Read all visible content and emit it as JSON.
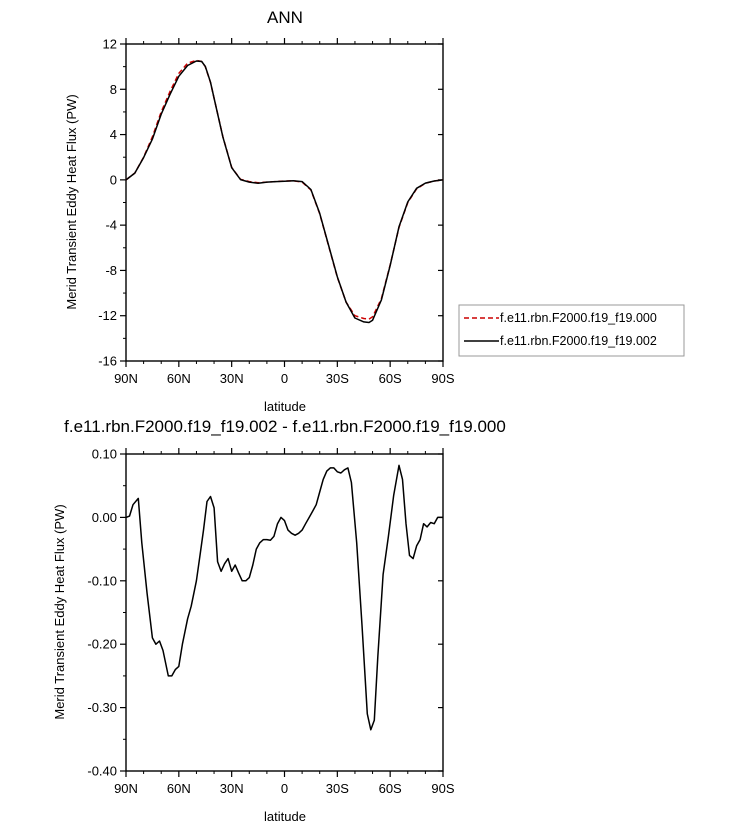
{
  "chart_data": [
    {
      "type": "line",
      "title": "ANN",
      "xlabel": "latitude",
      "ylabel": "Merid Transient Eddy Heat Flux (PW)",
      "xlim": [
        90,
        -90
      ],
      "ylim": [
        -16,
        12
      ],
      "x_ticks": [
        90,
        60,
        30,
        0,
        -30,
        -60,
        -90
      ],
      "x_tick_labels": [
        "90N",
        "60N",
        "30N",
        "0",
        "30S",
        "60S",
        "90S"
      ],
      "y_ticks": [
        12,
        8,
        4,
        0,
        -4,
        -8,
        -12,
        -16
      ],
      "y_tick_labels": [
        "12",
        "8",
        "4",
        "0",
        "-4",
        "-8",
        "-12",
        "-16"
      ],
      "legend_position": "right",
      "series": [
        {
          "name": "f.e11.rbn.F2000.f19_f19.000",
          "color": "#cc0000",
          "dash": "dashed",
          "x": [
            90,
            85,
            80,
            75,
            70,
            65,
            60,
            55,
            50,
            47,
            45,
            42,
            40,
            35,
            30,
            25,
            20,
            15,
            10,
            5,
            0,
            -5,
            -10,
            -15,
            -20,
            -25,
            -30,
            -35,
            -40,
            -45,
            -48,
            -50,
            -55,
            -60,
            -65,
            -70,
            -75,
            -80,
            -85,
            -90
          ],
          "y": [
            0,
            0.6,
            2.0,
            3.8,
            6.0,
            7.8,
            9.4,
            10.3,
            10.55,
            10.45,
            10.0,
            8.6,
            7.2,
            3.8,
            1.1,
            0.05,
            -0.15,
            -0.25,
            -0.2,
            -0.15,
            -0.1,
            -0.08,
            -0.2,
            -0.9,
            -3.0,
            -5.8,
            -8.6,
            -10.8,
            -12.0,
            -12.25,
            -12.3,
            -12.1,
            -10.5,
            -7.5,
            -4.2,
            -2.0,
            -0.8,
            -0.3,
            -0.1,
            0
          ]
        },
        {
          "name": "f.e11.rbn.F2000.f19_f19.002",
          "color": "#000000",
          "dash": "solid",
          "x": [
            90,
            85,
            80,
            75,
            70,
            65,
            60,
            55,
            50,
            47,
            45,
            42,
            40,
            35,
            30,
            25,
            20,
            15,
            10,
            5,
            0,
            -5,
            -10,
            -15,
            -20,
            -25,
            -30,
            -35,
            -40,
            -45,
            -48,
            -50,
            -55,
            -60,
            -65,
            -70,
            -75,
            -80,
            -85,
            -90
          ],
          "y": [
            0,
            0.6,
            1.97,
            3.6,
            5.8,
            7.55,
            9.15,
            10.1,
            10.5,
            10.45,
            10.02,
            8.63,
            7.2,
            3.78,
            1.07,
            0.02,
            -0.2,
            -0.3,
            -0.2,
            -0.15,
            -0.12,
            -0.08,
            -0.15,
            -0.85,
            -2.95,
            -5.75,
            -8.55,
            -10.8,
            -12.2,
            -12.55,
            -12.6,
            -12.4,
            -10.6,
            -7.55,
            -4.15,
            -1.95,
            -0.75,
            -0.29,
            -0.1,
            0
          ]
        }
      ]
    },
    {
      "type": "line",
      "title": "f.e11.rbn.F2000.f19_f19.002 - f.e11.rbn.F2000.f19_f19.000",
      "xlabel": "latitude",
      "ylabel": "Merid Transient Eddy Heat Flux (PW)",
      "xlim": [
        90,
        -90
      ],
      "ylim": [
        -0.4,
        0.1
      ],
      "x_ticks": [
        90,
        60,
        30,
        0,
        -30,
        -60,
        -90
      ],
      "x_tick_labels": [
        "90N",
        "60N",
        "30N",
        "0",
        "30S",
        "60S",
        "90S"
      ],
      "y_ticks": [
        0.1,
        0,
        -0.1,
        -0.2,
        -0.3,
        -0.4
      ],
      "y_tick_labels": [
        "0.10",
        "0.00",
        "-0.10",
        "-0.20",
        "-0.30",
        "-0.40"
      ],
      "series": [
        {
          "name": "",
          "color": "#000000",
          "x": [
            90,
            88,
            86,
            83,
            81,
            78,
            75,
            73,
            71,
            69,
            66,
            64,
            62,
            60,
            58,
            55,
            53,
            50,
            48,
            46,
            44,
            42,
            40,
            38,
            36,
            34,
            32,
            30,
            28,
            26,
            24,
            22,
            20,
            18,
            16,
            14,
            12,
            10,
            8,
            6,
            4,
            2,
            0,
            -2,
            -4,
            -6,
            -8,
            -10,
            -12,
            -14,
            -16,
            -18,
            -20,
            -22,
            -24,
            -26,
            -28,
            -30,
            -32,
            -34,
            -36,
            -38,
            -41,
            -44,
            -47,
            -49,
            -51,
            -53,
            -56,
            -59,
            -62,
            -65,
            -67,
            -69,
            -71,
            -73,
            -75,
            -77,
            -79,
            -81,
            -83,
            -85,
            -87,
            -90
          ],
          "y": [
            0,
            0.002,
            0.02,
            0.03,
            -0.04,
            -0.12,
            -0.19,
            -0.2,
            -0.195,
            -0.21,
            -0.25,
            -0.25,
            -0.24,
            -0.235,
            -0.2,
            -0.16,
            -0.14,
            -0.1,
            -0.06,
            -0.02,
            0.025,
            0.033,
            0.015,
            -0.07,
            -0.085,
            -0.073,
            -0.065,
            -0.085,
            -0.075,
            -0.088,
            -0.1,
            -0.1,
            -0.095,
            -0.075,
            -0.05,
            -0.04,
            -0.035,
            -0.035,
            -0.036,
            -0.03,
            -0.01,
            0.0,
            -0.005,
            -0.02,
            -0.025,
            -0.028,
            -0.025,
            -0.02,
            -0.01,
            0.0,
            0.01,
            0.02,
            0.04,
            0.06,
            0.073,
            0.078,
            0.078,
            0.072,
            0.07,
            0.075,
            0.078,
            0.055,
            -0.04,
            -0.17,
            -0.31,
            -0.335,
            -0.32,
            -0.22,
            -0.09,
            -0.03,
            0.035,
            0.082,
            0.06,
            -0.01,
            -0.06,
            -0.065,
            -0.045,
            -0.035,
            -0.01,
            -0.015,
            -0.008,
            -0.01,
            0.0,
            0.0
          ]
        }
      ]
    }
  ]
}
